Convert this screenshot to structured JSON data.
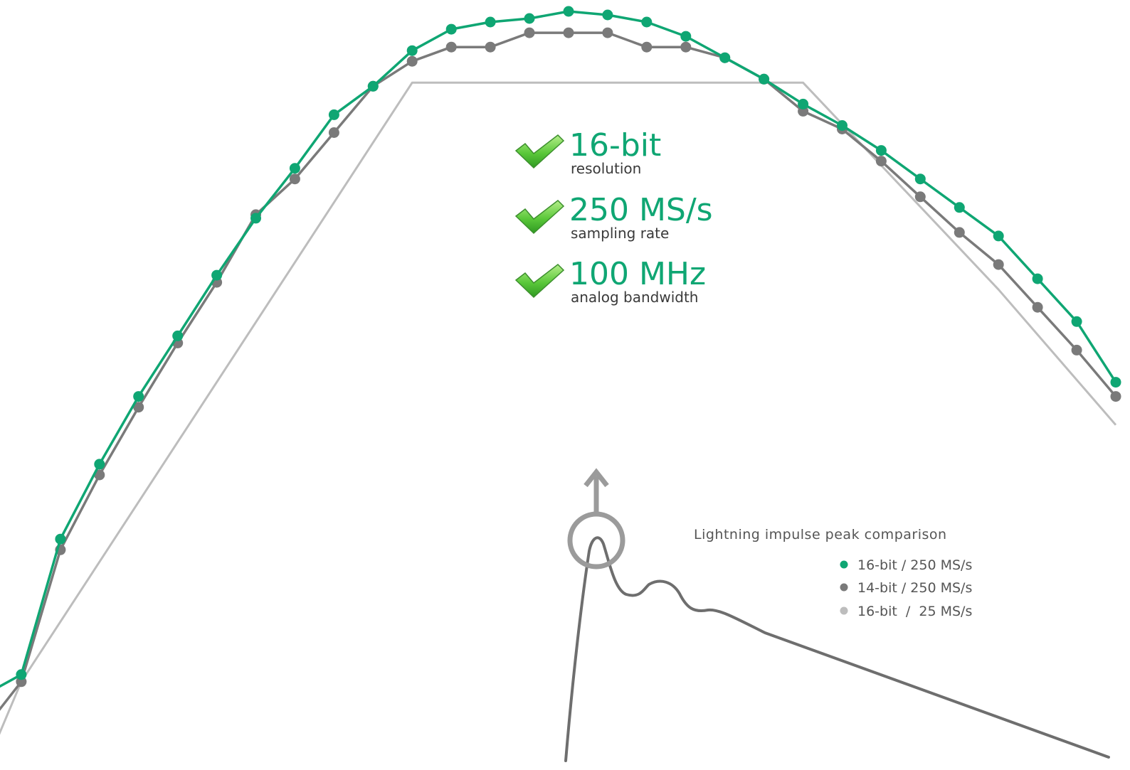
{
  "specs": [
    {
      "value": "16-bit",
      "label": "resolution"
    },
    {
      "value": "250 MS/s",
      "label": "sampling rate"
    },
    {
      "value": "100 MHz",
      "label": "analog bandwidth"
    }
  ],
  "legend": {
    "title": "Lightning impulse peak comparison",
    "entries": [
      {
        "label": "16-bit / 250 MS/s",
        "color": "#0fa673"
      },
      {
        "label": "14-bit / 250 MS/s",
        "color": "#7a7a7a"
      },
      {
        "label": "16-bit  /  25 MS/s",
        "color": "#bdbdbd"
      }
    ]
  },
  "icons": {
    "spec": "green-checkmark-icon",
    "zoom": "magnifier-circle-arrow-icon"
  },
  "chart_data": {
    "type": "line",
    "title": "",
    "xlabel": "",
    "ylabel": "",
    "grid": false,
    "axes_visible": false,
    "legend_position": "bottom-right",
    "xlim": [
      0,
      29
    ],
    "ylim": [
      0,
      100
    ],
    "series": [
      {
        "name": "16-bit / 250 MS/s",
        "color": "#0fa673",
        "markers": true,
        "x": [
          0,
          1,
          2,
          3,
          4,
          5,
          6,
          7,
          8,
          9,
          10,
          11,
          12,
          13,
          14,
          15,
          16,
          17,
          18,
          19,
          20,
          21,
          22,
          23,
          24,
          25,
          26,
          27,
          28,
          29
        ],
        "y": [
          4,
          7,
          26,
          36.5,
          46,
          54.5,
          63,
          71,
          78,
          85.5,
          89.5,
          94.5,
          97.5,
          98.5,
          99,
          100,
          99.5,
          98.5,
          96.5,
          93.5,
          90.5,
          87,
          84,
          80.5,
          76.5,
          72.5,
          68.5,
          62.5,
          56.5,
          48
        ]
      },
      {
        "name": "14-bit / 250 MS/s",
        "color": "#7a7a7a",
        "markers": true,
        "x": [
          0,
          1,
          2,
          3,
          4,
          5,
          6,
          7,
          8,
          9,
          10,
          11,
          12,
          13,
          14,
          15,
          16,
          17,
          18,
          19,
          20,
          21,
          22,
          23,
          24,
          25,
          26,
          27,
          28,
          29
        ],
        "y": [
          -1,
          6,
          24.5,
          35,
          44.5,
          53.5,
          62,
          71.5,
          76.5,
          83,
          89.5,
          93,
          95,
          95,
          97,
          97,
          97,
          95,
          95,
          93.5,
          90.5,
          86,
          83.5,
          79,
          74,
          69,
          64.5,
          58.5,
          52.5,
          46
        ]
      },
      {
        "name": "16-bit  /  25 MS/s",
        "color": "#bdbdbd",
        "markers": false,
        "x": [
          0,
          1,
          11,
          21,
          26,
          29
        ],
        "y": [
          -7,
          6,
          90,
          90,
          61,
          42
        ]
      }
    ]
  }
}
